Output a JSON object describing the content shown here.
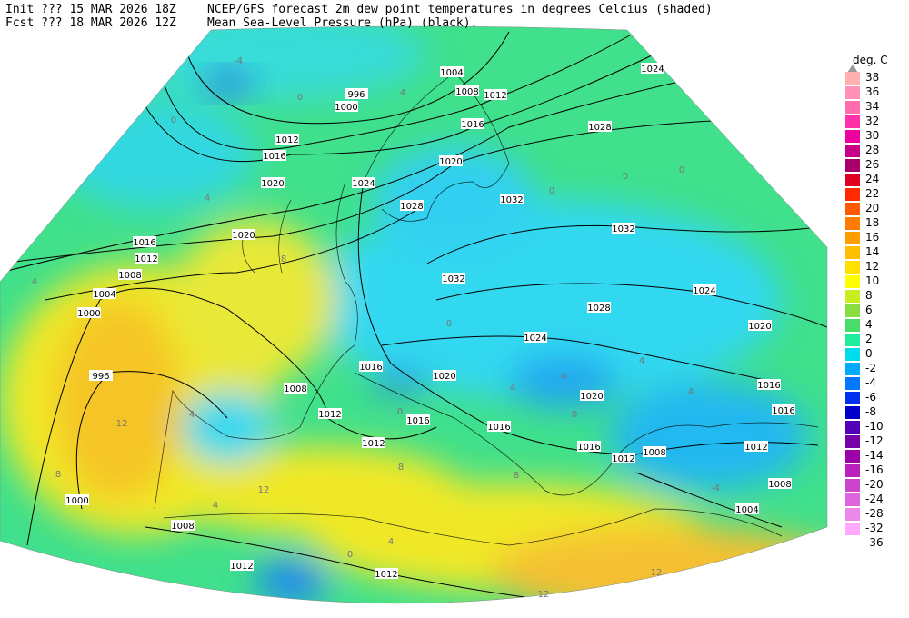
{
  "header": {
    "init": "Init  ??? 15 MAR 2026 18Z",
    "forecast": "Fcst ??? 18 MAR 2026 12Z",
    "title_line_1": "NCEP/GFS forecast 2m dew point temperatures in degrees Celcius (shaded)",
    "title_line_2": "Mean Sea-Level Pressure (hPa) (black)."
  },
  "colorbar": {
    "unit": "deg. C",
    "levels": [
      38,
      36,
      34,
      32,
      30,
      28,
      26,
      24,
      22,
      20,
      18,
      16,
      14,
      12,
      10,
      8,
      6,
      4,
      2,
      0,
      -2,
      -4,
      -6,
      -8,
      -10,
      -12,
      -14,
      -16,
      -20,
      -24,
      -28,
      -32,
      -36
    ],
    "colors": [
      "#9a9a9a",
      "#ffb0b0",
      "#ff90b8",
      "#ff6cb0",
      "#ff30a8",
      "#ee00a0",
      "#c80088",
      "#a80068",
      "#dd0020",
      "#ff2a00",
      "#ff5a00",
      "#ff7c00",
      "#ff9c00",
      "#ffbe00",
      "#ffe000",
      "#ffff00",
      "#c8ee20",
      "#88de40",
      "#48dc68",
      "#20ee9c",
      "#00dcec",
      "#00aaff",
      "#0078ff",
      "#0030ee",
      "#0000c8",
      "#5400b8",
      "#7800a8",
      "#9c00a8",
      "#bc20bc",
      "#cc44cc",
      "#dc64dc",
      "#ec88ec",
      "#ffaaff"
    ]
  },
  "isobar_labels": [
    1024,
    996,
    1000,
    1008,
    1012,
    1016,
    1028,
    1012,
    1016,
    1020,
    1020,
    1024,
    1032,
    1028,
    1032,
    1016,
    1012,
    1008,
    1032,
    1024,
    1004,
    1028,
    1000,
    1020,
    1024,
    1016,
    996,
    1020,
    1008,
    1016,
    1020,
    1016,
    1012,
    1016,
    1016,
    1012,
    1016,
    1008,
    1012,
    1012,
    1008,
    1000,
    1004,
    1008,
    1012,
    1012,
    1020,
    1004
  ],
  "field_labels": [
    4,
    0,
    0,
    4,
    -4,
    8,
    4,
    0,
    0,
    0,
    0,
    4,
    -4,
    12,
    8,
    4,
    0,
    4,
    0,
    12,
    8,
    4,
    0,
    4,
    12,
    12,
    -4,
    8,
    4
  ]
}
